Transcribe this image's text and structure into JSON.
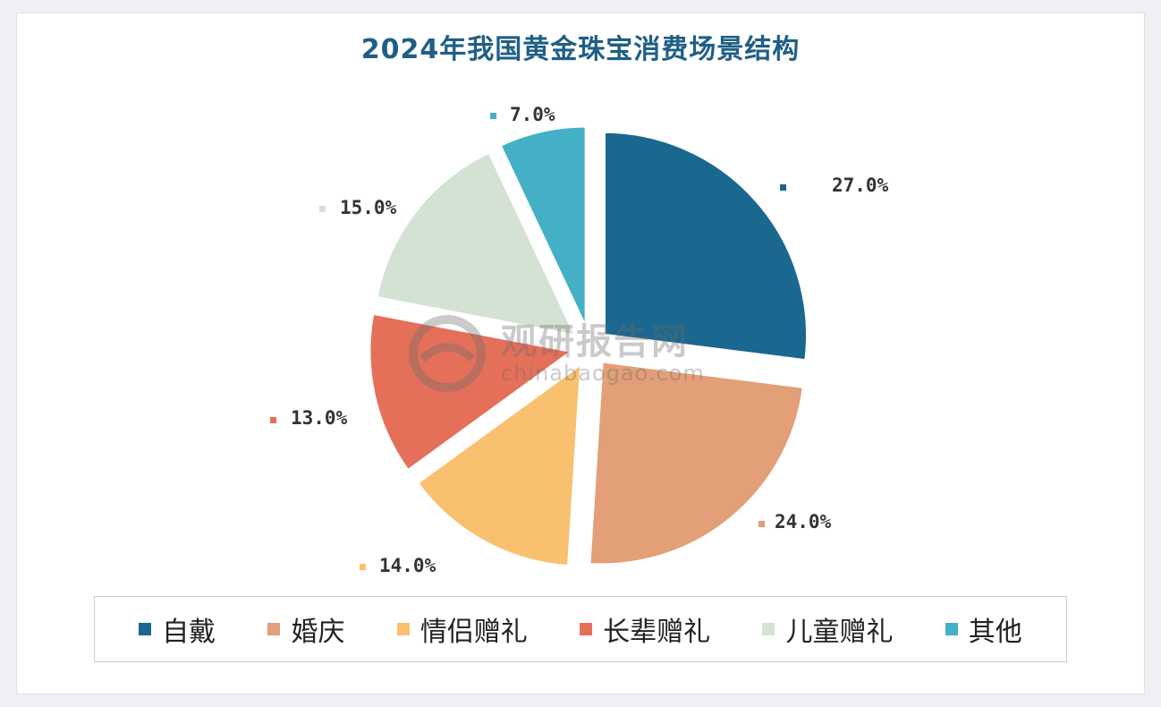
{
  "chart_data": {
    "type": "pie",
    "title": "2024年我国黄金珠宝消费场景结构",
    "categories": [
      "自戴",
      "婚庆",
      "情侣赠礼",
      "长辈赠礼",
      "儿童赠礼",
      "其他"
    ],
    "values": [
      27.0,
      24.0,
      14.0,
      13.0,
      15.0,
      7.0
    ],
    "labels": [
      "27.0%",
      "24.0%",
      "14.0%",
      "13.0%",
      "15.0%",
      "7.0%"
    ],
    "colors": [
      "#1a678f",
      "#e29f78",
      "#f8c06f",
      "#e4705a",
      "#d4e2d4",
      "#44b0c5"
    ],
    "legend": "bottom",
    "exploded": true
  },
  "watermark": {
    "name": "观研报告网",
    "url": "chinabaogao.com"
  }
}
